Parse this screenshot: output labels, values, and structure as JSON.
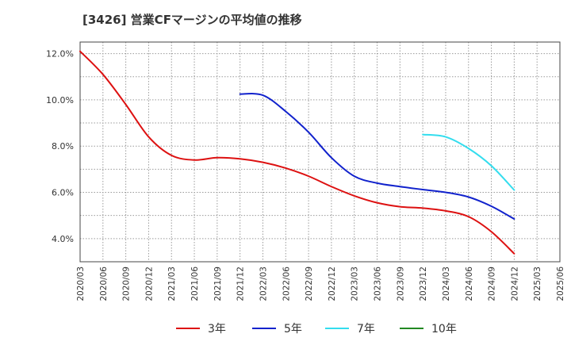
{
  "chart_data": {
    "type": "line",
    "title": "[3426]  営業CFマージンの平均値の推移",
    "xlabel": "",
    "ylabel": "",
    "x_ticks": [
      "2020/03",
      "2020/06",
      "2020/09",
      "2020/12",
      "2021/03",
      "2021/06",
      "2021/09",
      "2021/12",
      "2022/03",
      "2022/06",
      "2022/09",
      "2022/12",
      "2023/03",
      "2023/06",
      "2023/09",
      "2023/12",
      "2024/03",
      "2024/06",
      "2024/09",
      "2024/12",
      "2025/03",
      "2025/06"
    ],
    "y_ticks": [
      "4.0%",
      "6.0%",
      "8.0%",
      "10.0%",
      "12.0%"
    ],
    "ylim": [
      3.0,
      12.5
    ],
    "grid": true,
    "legend_position": "bottom",
    "series": [
      {
        "name": "3年",
        "color": "#dd1111",
        "x": [
          "2020/03",
          "2020/06",
          "2020/09",
          "2020/12",
          "2021/03",
          "2021/06",
          "2021/09",
          "2021/12",
          "2022/03",
          "2022/06",
          "2022/09",
          "2022/12",
          "2023/03",
          "2023/06",
          "2023/09",
          "2023/12",
          "2024/03",
          "2024/06",
          "2024/09",
          "2024/12"
        ],
        "values": [
          12.1,
          11.1,
          9.8,
          8.4,
          7.6,
          7.4,
          7.5,
          7.45,
          7.3,
          7.05,
          6.7,
          6.25,
          5.85,
          5.55,
          5.38,
          5.32,
          5.2,
          4.95,
          4.3,
          3.35
        ]
      },
      {
        "name": "5年",
        "color": "#1122cc",
        "x": [
          "2021/12",
          "2022/03",
          "2022/06",
          "2022/09",
          "2022/12",
          "2023/03",
          "2023/06",
          "2023/09",
          "2023/12",
          "2024/03",
          "2024/06",
          "2024/09",
          "2024/12"
        ],
        "values": [
          10.25,
          10.2,
          9.5,
          8.6,
          7.5,
          6.7,
          6.4,
          6.25,
          6.12,
          6.0,
          5.8,
          5.4,
          4.85
        ]
      },
      {
        "name": "7年",
        "color": "#33ddee",
        "x": [
          "2023/12",
          "2024/03",
          "2024/06",
          "2024/09",
          "2024/12"
        ],
        "values": [
          8.5,
          8.4,
          7.9,
          7.15,
          6.1
        ]
      },
      {
        "name": "10年",
        "color": "#228822",
        "x": [],
        "values": []
      }
    ]
  }
}
